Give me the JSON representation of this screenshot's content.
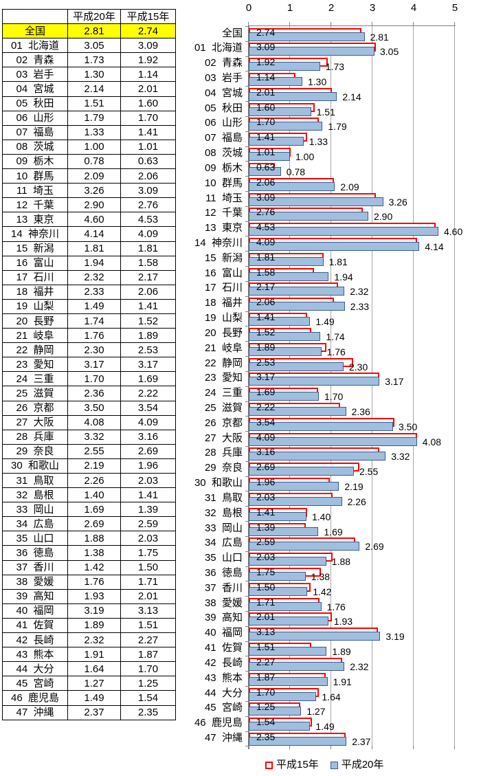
{
  "table": {
    "corner_label": "",
    "col_headers": [
      "平成20年",
      "平成15年"
    ],
    "highlight_row": "全国",
    "highlight_color": "#FFFF00"
  },
  "chart_data": {
    "type": "bar",
    "orientation": "horizontal",
    "title": "",
    "xlabel": "",
    "ylabel": "",
    "xlim": [
      0,
      5
    ],
    "xticks": [
      0,
      1,
      2,
      3,
      4,
      5
    ],
    "grid": true,
    "legend_position": "bottom",
    "value_labels": true,
    "categories": [
      "全国",
      "01  北海道",
      "02  青森",
      "03  岩手",
      "04  宮城",
      "05  秋田",
      "06  山形",
      "07  福島",
      "08  茨城",
      "09  栃木",
      "10  群馬",
      "11  埼玉",
      "12  千葉",
      "13  東京",
      "14  神奈川",
      "15  新潟",
      "16  富山",
      "17  石川",
      "18  福井",
      "19  山梨",
      "20  長野",
      "21  岐阜",
      "22  静岡",
      "23  愛知",
      "24  三重",
      "25  滋賀",
      "26  京都",
      "27  大阪",
      "28  兵庫",
      "29  奈良",
      "30  和歌山",
      "31  鳥取",
      "32  島根",
      "33  岡山",
      "34  広島",
      "35  山口",
      "36  徳島",
      "37  香川",
      "38  愛媛",
      "39  高知",
      "40  福岡",
      "41  佐賀",
      "42  長崎",
      "43  熊本",
      "44  大分",
      "45  宮崎",
      "46  鹿児島",
      "47  沖縄"
    ],
    "series": [
      {
        "name": "平成15年",
        "style": "outlined",
        "fill": "#FFFFFF",
        "color": "#FF0000",
        "values": [
          2.74,
          3.09,
          1.92,
          1.14,
          2.01,
          1.6,
          1.7,
          1.41,
          1.01,
          0.63,
          2.06,
          3.09,
          2.76,
          4.53,
          4.09,
          1.81,
          1.58,
          2.17,
          2.06,
          1.41,
          1.52,
          1.89,
          2.53,
          3.17,
          1.69,
          2.22,
          3.54,
          4.09,
          3.16,
          2.69,
          1.96,
          2.03,
          1.41,
          1.39,
          2.59,
          2.03,
          1.75,
          1.5,
          1.71,
          2.01,
          3.13,
          1.51,
          2.27,
          1.87,
          1.7,
          1.25,
          1.54,
          2.35
        ]
      },
      {
        "name": "平成20年",
        "style": "filled",
        "fill": "#A1BEDF",
        "color": "#385D8A",
        "values": [
          2.81,
          3.05,
          1.73,
          1.3,
          2.14,
          1.51,
          1.79,
          1.33,
          1.0,
          0.78,
          2.09,
          3.26,
          2.9,
          4.6,
          4.14,
          1.81,
          1.94,
          2.32,
          2.33,
          1.49,
          1.74,
          1.76,
          2.3,
          3.17,
          1.7,
          2.36,
          3.5,
          4.08,
          3.32,
          2.55,
          2.19,
          2.26,
          1.4,
          1.69,
          2.69,
          1.88,
          1.38,
          1.42,
          1.76,
          1.93,
          3.19,
          1.89,
          2.32,
          1.91,
          1.64,
          1.27,
          1.49,
          2.37
        ]
      }
    ]
  },
  "colors": {
    "grid": "#A6A6A6",
    "axis": "#7F7F7F",
    "text": "#000000"
  }
}
